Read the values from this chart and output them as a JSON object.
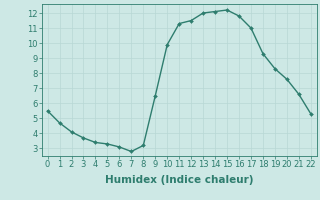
{
  "x": [
    0,
    1,
    2,
    3,
    4,
    5,
    6,
    7,
    8,
    9,
    10,
    11,
    12,
    13,
    14,
    15,
    16,
    17,
    18,
    19,
    20,
    21,
    22
  ],
  "y": [
    5.5,
    4.7,
    4.1,
    3.7,
    3.4,
    3.3,
    3.1,
    2.8,
    3.2,
    6.5,
    9.9,
    11.3,
    11.5,
    12.0,
    12.1,
    12.2,
    11.8,
    11.0,
    9.3,
    8.3,
    7.6,
    6.6,
    5.3
  ],
  "xlabel": "Humidex (Indice chaleur)",
  "yticks": [
    3,
    4,
    5,
    6,
    7,
    8,
    9,
    10,
    11,
    12
  ],
  "xticks": [
    0,
    1,
    2,
    3,
    4,
    5,
    6,
    7,
    8,
    9,
    10,
    11,
    12,
    13,
    14,
    15,
    16,
    17,
    18,
    19,
    20,
    21,
    22
  ],
  "ylim": [
    2.5,
    12.6
  ],
  "xlim": [
    -0.5,
    22.5
  ],
  "line_color": "#2e7d6e",
  "bg_color": "#cde8e5",
  "grid_color": "#b8d8d5",
  "marker": "D",
  "marker_size": 2.0,
  "line_width": 1.0,
  "xlabel_fontsize": 7.5,
  "tick_fontsize": 6.0
}
